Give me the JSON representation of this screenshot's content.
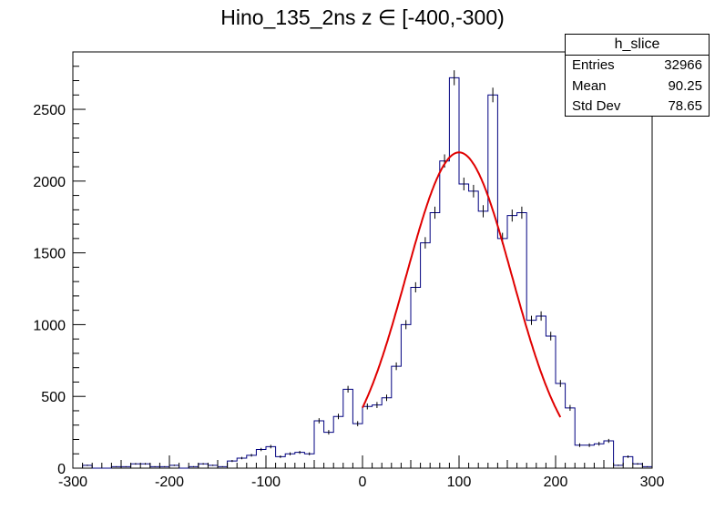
{
  "chart_data": {
    "type": "histogram",
    "title": "Hino_135_2ns z  ∈ [-400,-300)",
    "xlabel": "",
    "ylabel": "",
    "xlim": [
      -300,
      300
    ],
    "ylim": [
      0,
      2900
    ],
    "x_ticks": [
      -300,
      -200,
      -100,
      0,
      100,
      200,
      300
    ],
    "y_ticks": [
      0,
      500,
      1000,
      1500,
      2000,
      2500
    ],
    "grid": false,
    "bin_width": 10,
    "bin_edges_start": -300,
    "series": [
      {
        "color": "#000080",
        "values": [
          0,
          20,
          0,
          0,
          10,
          10,
          30,
          30,
          10,
          10,
          20,
          0,
          10,
          30,
          20,
          10,
          50,
          70,
          90,
          130,
          150,
          80,
          100,
          110,
          100,
          330,
          250,
          360,
          550,
          310,
          430,
          440,
          490,
          710,
          1000,
          1260,
          1570,
          1780,
          2140,
          2720,
          1980,
          1930,
          1790,
          2600,
          1600,
          1760,
          1780,
          1030,
          1060,
          920,
          590,
          420,
          160,
          160,
          170,
          190,
          20,
          80,
          30,
          10
        ]
      },
      {
        "color": "#e00000",
        "style": "fit-curve",
        "x_range": [
          0,
          205
        ],
        "mean": 100,
        "sigma": 55,
        "amplitude": 2200
      }
    ]
  },
  "stats_box": {
    "name": "h_slice",
    "rows": [
      {
        "label": "Entries",
        "value": "32966"
      },
      {
        "label": "Mean",
        "value": "90.25"
      },
      {
        "label": "Std Dev",
        "value": "78.65"
      }
    ]
  },
  "colors": {
    "histogram": "#000080",
    "fit": "#e00000",
    "axes": "#000000"
  }
}
